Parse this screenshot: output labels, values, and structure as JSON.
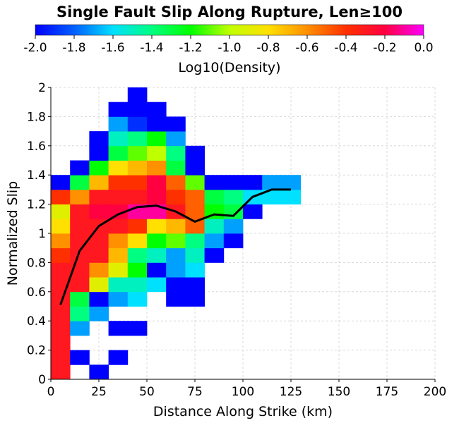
{
  "chart_data": {
    "type": "heatmap",
    "title": "Single Fault Slip Along Rupture, Len≥100",
    "xlabel": "Distance Along Strike (km)",
    "ylabel": "Normalized Slip",
    "colorbar_label": "Log10(Density)",
    "colorbar_range": [
      -2.0,
      0.0
    ],
    "colorbar_ticks": [
      "-2.0",
      "-1.8",
      "-1.6",
      "-1.4",
      "-1.2",
      "-1.0",
      "-0.8",
      "-0.6",
      "-0.4",
      "-0.2",
      "0.0"
    ],
    "xlim": [
      0,
      200
    ],
    "ylim": [
      0,
      2
    ],
    "x_ticks": [
      "0",
      "25",
      "50",
      "75",
      "100",
      "125",
      "150",
      "175",
      "200"
    ],
    "y_ticks": [
      "0",
      "0.2",
      "0.4",
      "0.6",
      "0.8",
      "1",
      "1.2",
      "1.4",
      "1.6",
      "1.8",
      "2"
    ],
    "grid": true,
    "cell_size": {
      "x_km": 10,
      "y_slip": 0.1
    },
    "cells_note": "columns: x-bin start km; rows: y-bin start; values: log10 density",
    "cells": [
      {
        "x": 0,
        "values": [
          [
            0.0,
            -0.3
          ],
          [
            0.1,
            -0.3
          ],
          [
            0.2,
            -0.3
          ],
          [
            0.3,
            -0.3
          ],
          [
            0.4,
            -0.3
          ],
          [
            0.5,
            -0.3
          ],
          [
            0.6,
            -0.3
          ],
          [
            0.7,
            -0.3
          ],
          [
            0.8,
            -0.4
          ],
          [
            0.9,
            -0.6
          ],
          [
            1.0,
            -0.8
          ],
          [
            1.1,
            -0.9
          ],
          [
            1.2,
            -0.4
          ],
          [
            1.3,
            -2.0
          ]
        ]
      },
      {
        "x": 10,
        "values": [
          [
            0.1,
            -2.0
          ],
          [
            0.3,
            -1.7
          ],
          [
            0.4,
            -1.4
          ],
          [
            0.5,
            -1.3
          ],
          [
            0.6,
            -0.3
          ],
          [
            0.7,
            -0.3
          ],
          [
            0.8,
            -0.3
          ],
          [
            0.9,
            -0.3
          ],
          [
            1.0,
            -0.3
          ],
          [
            1.1,
            -0.3
          ],
          [
            1.2,
            -0.6
          ],
          [
            1.3,
            -1.3
          ],
          [
            1.4,
            -2.0
          ]
        ]
      },
      {
        "x": 20,
        "values": [
          [
            0.0,
            -2.0
          ],
          [
            0.4,
            -1.7
          ],
          [
            0.5,
            -2.0
          ],
          [
            0.6,
            -0.9
          ],
          [
            0.7,
            -0.6
          ],
          [
            0.8,
            -0.3
          ],
          [
            0.9,
            -0.3
          ],
          [
            1.0,
            -0.3
          ],
          [
            1.1,
            -0.2
          ],
          [
            1.2,
            -0.3
          ],
          [
            1.3,
            -0.7
          ],
          [
            1.4,
            -1.2
          ],
          [
            1.5,
            -2.0
          ],
          [
            1.6,
            -2.0
          ]
        ]
      },
      {
        "x": 30,
        "values": [
          [
            0.1,
            -2.0
          ],
          [
            0.3,
            -2.0
          ],
          [
            0.5,
            -1.7
          ],
          [
            0.6,
            -1.5
          ],
          [
            0.7,
            -0.9
          ],
          [
            0.8,
            -0.7
          ],
          [
            0.9,
            -0.6
          ],
          [
            1.0,
            -0.3
          ],
          [
            1.1,
            -0.2
          ],
          [
            1.2,
            -0.3
          ],
          [
            1.3,
            -0.4
          ],
          [
            1.4,
            -0.8
          ],
          [
            1.5,
            -1.3
          ],
          [
            1.6,
            -1.5
          ],
          [
            1.7,
            -1.7
          ],
          [
            1.8,
            -2.0
          ]
        ]
      },
      {
        "x": 40,
        "values": [
          [
            0.3,
            -2.0
          ],
          [
            0.5,
            -1.6
          ],
          [
            0.6,
            -1.5
          ],
          [
            0.7,
            -1.2
          ],
          [
            0.8,
            -1.4
          ],
          [
            0.9,
            -0.8
          ],
          [
            1.0,
            -0.4
          ],
          [
            1.1,
            -0.1
          ],
          [
            1.2,
            -0.3
          ],
          [
            1.3,
            -0.4
          ],
          [
            1.4,
            -0.7
          ],
          [
            1.5,
            -1.1
          ],
          [
            1.6,
            -1.4
          ],
          [
            1.7,
            -1.9
          ],
          [
            1.8,
            -2.0
          ],
          [
            1.9,
            -2.0
          ]
        ]
      },
      {
        "x": 50,
        "values": [
          [
            0.6,
            -1.6
          ],
          [
            0.7,
            -2.0
          ],
          [
            0.8,
            -1.5
          ],
          [
            0.9,
            -1.2
          ],
          [
            1.0,
            -0.8
          ],
          [
            1.1,
            -0.1
          ],
          [
            1.2,
            -0.2
          ],
          [
            1.3,
            -0.2
          ],
          [
            1.4,
            -0.6
          ],
          [
            1.5,
            -1.0
          ],
          [
            1.6,
            -1.2
          ],
          [
            1.7,
            -2.0
          ],
          [
            1.8,
            -2.0
          ]
        ]
      },
      {
        "x": 60,
        "values": [
          [
            0.5,
            -2.0
          ],
          [
            0.6,
            -2.0
          ],
          [
            0.7,
            -1.7
          ],
          [
            0.8,
            -1.7
          ],
          [
            0.9,
            -1.1
          ],
          [
            1.0,
            -0.7
          ],
          [
            1.1,
            -0.3
          ],
          [
            1.2,
            -0.4
          ],
          [
            1.3,
            -0.5
          ],
          [
            1.4,
            -1.3
          ],
          [
            1.5,
            -1.4
          ],
          [
            1.6,
            -1.7
          ],
          [
            1.7,
            -2.0
          ]
        ]
      },
      {
        "x": 70,
        "values": [
          [
            0.5,
            -2.0
          ],
          [
            0.6,
            -2.0
          ],
          [
            0.7,
            -1.6
          ],
          [
            0.8,
            -1.5
          ],
          [
            0.9,
            -1.4
          ],
          [
            1.0,
            -0.5
          ],
          [
            1.1,
            -0.5
          ],
          [
            1.2,
            -0.5
          ],
          [
            1.3,
            -1.1
          ],
          [
            1.4,
            -2.0
          ],
          [
            1.5,
            -2.0
          ]
        ]
      },
      {
        "x": 80,
        "values": [
          [
            0.8,
            -2.0
          ],
          [
            0.9,
            -1.7
          ],
          [
            1.0,
            -1.5
          ],
          [
            1.1,
            -1.2
          ],
          [
            1.2,
            -1.3
          ],
          [
            1.3,
            -2.0
          ]
        ]
      },
      {
        "x": 90,
        "values": [
          [
            0.9,
            -2.0
          ],
          [
            1.0,
            -1.7
          ],
          [
            1.1,
            -1.3
          ],
          [
            1.2,
            -1.4
          ],
          [
            1.3,
            -2.0
          ]
        ]
      },
      {
        "x": 100,
        "values": [
          [
            1.1,
            -2.0
          ],
          [
            1.2,
            -1.6
          ],
          [
            1.3,
            -2.0
          ]
        ]
      },
      {
        "x": 110,
        "values": [
          [
            1.2,
            -1.6
          ],
          [
            1.3,
            -1.7
          ]
        ]
      },
      {
        "x": 120,
        "values": [
          [
            1.2,
            -1.6
          ],
          [
            1.3,
            -1.7
          ]
        ]
      }
    ],
    "mean_line": {
      "x": [
        5,
        15,
        25,
        35,
        45,
        55,
        65,
        75,
        85,
        95,
        105,
        115,
        125
      ],
      "y": [
        0.51,
        0.88,
        1.05,
        1.13,
        1.18,
        1.19,
        1.15,
        1.08,
        1.13,
        1.12,
        1.25,
        1.3,
        1.3
      ],
      "color": "#000000"
    }
  }
}
